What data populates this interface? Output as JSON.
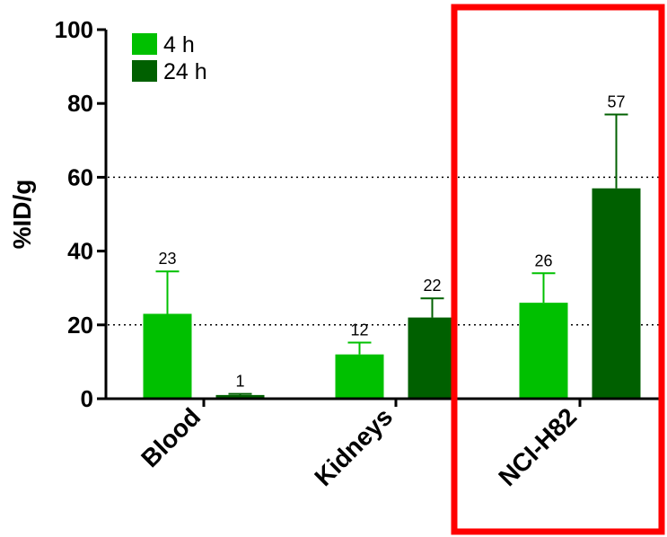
{
  "chart_data": {
    "type": "bar",
    "categories": [
      "Blood",
      "Kidneys",
      "NCI-H82"
    ],
    "series": [
      {
        "name": "4 h",
        "values": [
          23,
          12,
          26
        ],
        "errors": [
          11.5,
          3.2,
          8
        ],
        "data_labels": [
          "23",
          "12",
          "26"
        ],
        "color": "#00c000"
      },
      {
        "name": "24 h",
        "values": [
          1,
          22,
          57
        ],
        "errors": [
          0.3,
          5.2,
          20
        ],
        "data_labels": [
          "1",
          "22",
          "57"
        ],
        "color": "#006000"
      }
    ],
    "ylabel": "%ID/g",
    "xlabel": "",
    "ylim": [
      0,
      100
    ],
    "yticks": [
      "0",
      "20",
      "40",
      "60",
      "80",
      "100"
    ],
    "reference_lines": [
      20,
      60
    ],
    "legend_position": "top-left",
    "highlight_category": "NCI-H82",
    "highlight_color": "#ff0000"
  }
}
